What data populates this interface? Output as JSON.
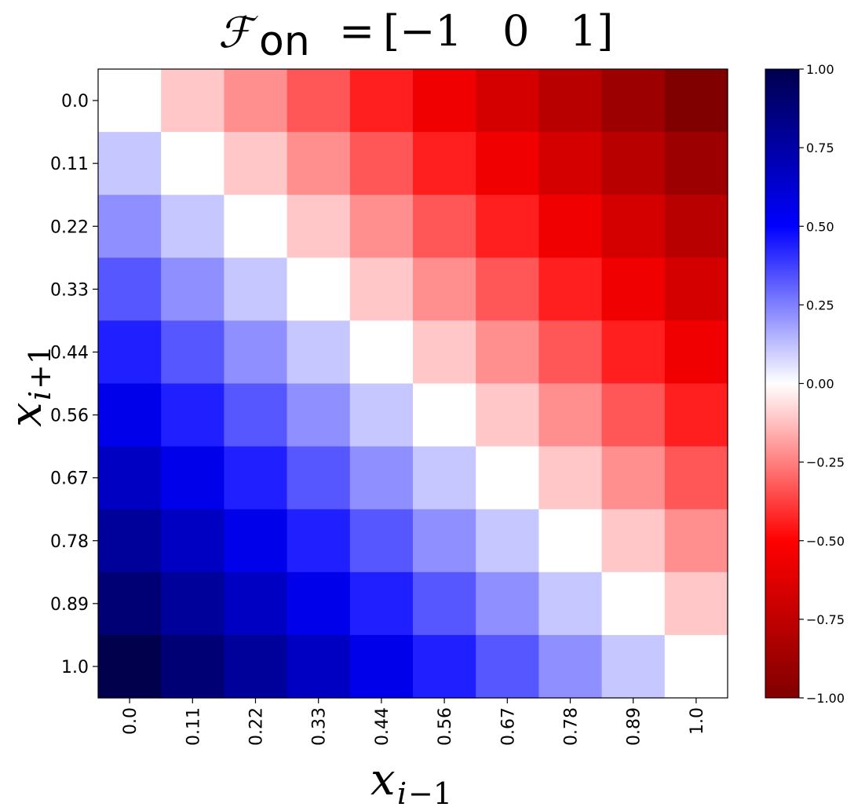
{
  "title": {
    "script_letter": "ℱ",
    "subscript": "on",
    "equals": "=",
    "vector": "[−1   0   1]"
  },
  "xlabel": {
    "var": "x",
    "sub_var": "i",
    "sub_op": "−1"
  },
  "ylabel": {
    "var": "x",
    "sub_var": "i",
    "sub_op": "+1"
  },
  "chart_data": {
    "type": "heatmap",
    "x_tick_labels": [
      "0.0",
      "0.11",
      "0.22",
      "0.33",
      "0.44",
      "0.56",
      "0.67",
      "0.78",
      "0.89",
      "1.0"
    ],
    "y_tick_labels": [
      "0.0",
      "0.11",
      "0.22",
      "0.33",
      "0.44",
      "0.56",
      "0.67",
      "0.78",
      "0.89",
      "1.0"
    ],
    "x_values": [
      0.0,
      0.11,
      0.22,
      0.33,
      0.44,
      0.56,
      0.67,
      0.78,
      0.89,
      1.0
    ],
    "y_values": [
      0.0,
      0.11,
      0.22,
      0.33,
      0.44,
      0.56,
      0.67,
      0.78,
      0.89,
      1.0
    ],
    "values": [
      [
        0.0,
        -0.11,
        -0.22,
        -0.33,
        -0.44,
        -0.56,
        -0.67,
        -0.78,
        -0.89,
        -1.0
      ],
      [
        0.11,
        0.0,
        -0.11,
        -0.22,
        -0.33,
        -0.44,
        -0.56,
        -0.67,
        -0.78,
        -0.89
      ],
      [
        0.22,
        0.11,
        0.0,
        -0.11,
        -0.22,
        -0.33,
        -0.44,
        -0.56,
        -0.67,
        -0.78
      ],
      [
        0.33,
        0.22,
        0.11,
        0.0,
        -0.11,
        -0.22,
        -0.33,
        -0.44,
        -0.56,
        -0.67
      ],
      [
        0.44,
        0.33,
        0.22,
        0.11,
        0.0,
        -0.11,
        -0.22,
        -0.33,
        -0.44,
        -0.56
      ],
      [
        0.56,
        0.44,
        0.33,
        0.22,
        0.11,
        0.0,
        -0.11,
        -0.22,
        -0.33,
        -0.44
      ],
      [
        0.67,
        0.56,
        0.44,
        0.33,
        0.22,
        0.11,
        0.0,
        -0.11,
        -0.22,
        -0.33
      ],
      [
        0.78,
        0.67,
        0.56,
        0.44,
        0.33,
        0.22,
        0.11,
        0.0,
        -0.11,
        -0.22
      ],
      [
        0.89,
        0.78,
        0.67,
        0.56,
        0.44,
        0.33,
        0.22,
        0.11,
        0.0,
        -0.11
      ],
      [
        1.0,
        0.89,
        0.78,
        0.67,
        0.56,
        0.44,
        0.33,
        0.22,
        0.11,
        0.0
      ]
    ],
    "colormap": "seismic (reversed): -1 dark red, 0 white, +1 dark navy",
    "color_stops": {
      "-1.0": "#800000",
      "-0.5": "#ff0000",
      "0.0": "#ffffff",
      "0.5": "#0000ff",
      "1.0": "#00004d"
    },
    "vmin": -1.0,
    "vmax": 1.0,
    "colorbar_ticks": [
      1.0,
      0.75,
      0.5,
      0.25,
      0.0,
      -0.25,
      -0.5,
      -0.75,
      -1.0
    ],
    "colorbar_tick_labels": [
      "1.00",
      "0.75",
      "0.50",
      "0.25",
      "0.00",
      "−0.25",
      "−0.50",
      "−0.75",
      "−1.00"
    ],
    "grid": false
  }
}
